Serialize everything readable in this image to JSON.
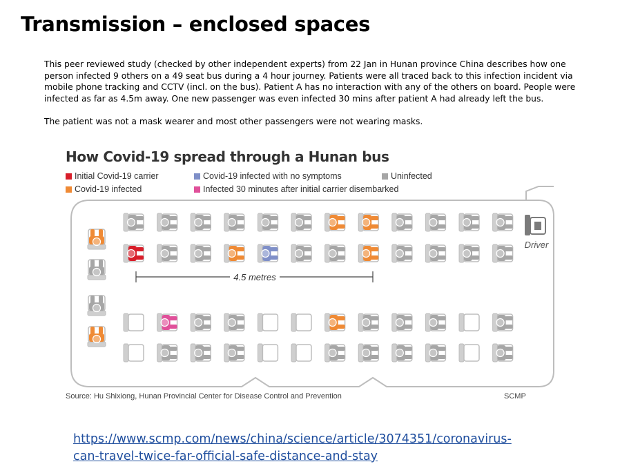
{
  "slide": {
    "title": "Transmission – enclosed spaces",
    "paragraph1": "This peer reviewed study (checked by other independent experts) from 22 Jan in Hunan province China describes how one person infected 9 others on a 49 seat bus during a 4 hour journey. Patients were all traced back to this infection incident via mobile phone tracking and CCTV (incl. on the bus). Patient A has no interaction with any of the others on board. People were infected as far as 4.5m away. One new passenger was even infected 30 mins after patient A had already left the bus.",
    "paragraph2": "The patient was not a mask wearer and most other passengers were not wearing masks.",
    "link": "https://www.scmp.com/news/china/science/article/3074351/coronavirus-can-travel-twice-far-official-safe-distance-and-stay"
  },
  "figure": {
    "title": "How Covid-19 spread through a Hunan bus",
    "legend": [
      {
        "key": "initial",
        "label": "Initial Covid-19 carrier",
        "color": "#d81e2a"
      },
      {
        "key": "asym",
        "label": "Covid-19 infected with no symptoms",
        "color": "#7f8fc8"
      },
      {
        "key": "uninf",
        "label": "Uninfected",
        "color": "#a6a6a6"
      },
      {
        "key": "infected",
        "label": "Covid-19 infected",
        "color": "#ef8a35"
      },
      {
        "key": "late",
        "label": "Infected 30 minutes after initial carrier disembarked",
        "color": "#e0509a"
      }
    ],
    "distance_label": "4.5 metres",
    "driver_label": "Driver",
    "source": "Source: Hu Shixiong, Hunan Provincial Center for Disease Control and Prevention",
    "credit": "SCMP",
    "colors": {
      "empty": "#cfcfcf",
      "outline": "#bdbdbd",
      "driver": "#7b7b7b"
    },
    "seat_rows": [
      [
        "empty",
        "uninf",
        "uninf",
        "uninf",
        "uninf",
        "uninf",
        "uninf",
        "infected",
        "infected",
        "uninf",
        "uninf",
        "uninf",
        "uninf"
      ],
      [
        "initial",
        "uninf",
        "uninf",
        "infected",
        "asym",
        "uninf",
        "uninf",
        "infected",
        "uninf",
        "uninf",
        "uninf",
        "uninf"
      ],
      [
        "empty",
        "late",
        "uninf",
        "uninf",
        "empty",
        "empty",
        "infected",
        "uninf",
        "uninf",
        "uninf",
        "empty",
        "uninf"
      ],
      [
        "empty",
        "uninf",
        "uninf",
        "uninf",
        "empty",
        "empty",
        "uninf",
        "uninf",
        "uninf",
        "uninf",
        "empty",
        "uninf"
      ]
    ],
    "back_row": [
      "infected",
      "uninf",
      "uninf",
      "infected"
    ]
  }
}
